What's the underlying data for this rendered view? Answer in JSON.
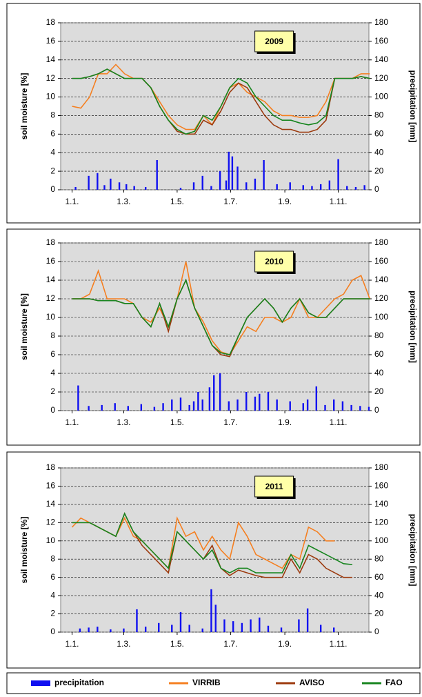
{
  "chart_data": [
    {
      "type": "line",
      "annotation": "2009",
      "ylabel": "soil moisture [%]",
      "y2label": "precipitation [mm]",
      "x": [
        1,
        11,
        21,
        31,
        41,
        51,
        61,
        71,
        81,
        91,
        101,
        111,
        121,
        131,
        141,
        151,
        161,
        171,
        181,
        191,
        201,
        211,
        221,
        231,
        241,
        251,
        261,
        271,
        281,
        291,
        301,
        311,
        321,
        331,
        341
      ],
      "xlim": [
        -12,
        340
      ],
      "xticks": [
        {
          "value": 1,
          "label": "1.1."
        },
        {
          "value": 60,
          "label": "1.3."
        },
        {
          "value": 121,
          "label": "1.5."
        },
        {
          "value": 182,
          "label": "1.7."
        },
        {
          "value": 244,
          "label": "1.9."
        },
        {
          "value": 305,
          "label": "1.11."
        }
      ],
      "ylim": [
        0,
        18
      ],
      "yticks": [
        0,
        2,
        4,
        6,
        8,
        10,
        12,
        14,
        16,
        18
      ],
      "y2lim": [
        0,
        180
      ],
      "y2ticks": [
        0,
        20,
        40,
        60,
        80,
        100,
        120,
        140,
        160,
        180
      ],
      "grid": true,
      "series": [
        {
          "name": "precipitation",
          "color": "#1010f0",
          "axis": "y2",
          "type": "bar",
          "x": [
            5,
            20,
            30,
            38,
            45,
            55,
            63,
            72,
            85,
            98,
            125,
            140,
            150,
            160,
            170,
            177,
            180,
            184,
            190,
            200,
            210,
            220,
            235,
            250,
            265,
            275,
            285,
            295,
            305,
            315,
            325,
            335
          ],
          "values": [
            3,
            15,
            18,
            5,
            12,
            8,
            6,
            4,
            3,
            32,
            2,
            8,
            15,
            4,
            20,
            10,
            41,
            36,
            25,
            8,
            12,
            32,
            6,
            8,
            5,
            4,
            6,
            10,
            33,
            4,
            3,
            5
          ]
        },
        {
          "name": "VIRRIB",
          "color": "#f57f20",
          "values": [
            9,
            8.8,
            10,
            12.5,
            12.5,
            13.5,
            12.5,
            12,
            12,
            11,
            9.5,
            8,
            7,
            6.5,
            6.5,
            8,
            7,
            9,
            11,
            11.5,
            10.5,
            10,
            9.5,
            8.5,
            8,
            8,
            7.8,
            7.8,
            8,
            9.5,
            12,
            12,
            12,
            12.5,
            12.5
          ]
        },
        {
          "name": "AVISO",
          "color": "#9c3a0e",
          "values": [
            12,
            12,
            12.2,
            12.5,
            13,
            12.5,
            12,
            12,
            12,
            11,
            9,
            7.5,
            6.3,
            6,
            6,
            7.5,
            7,
            8.5,
            10.5,
            11.5,
            11,
            9.5,
            8,
            7,
            6.5,
            6.5,
            6.2,
            6.2,
            6.5,
            7.5,
            12,
            12,
            12,
            12.2,
            12
          ]
        },
        {
          "name": "FAO",
          "color": "#17851f",
          "values": [
            12,
            12,
            12.2,
            12.5,
            13,
            12.5,
            12,
            12,
            12,
            11,
            9,
            7.5,
            6.5,
            6,
            6.3,
            8,
            7.5,
            9,
            11,
            12,
            11.5,
            10,
            9,
            8,
            7.5,
            7.5,
            7.2,
            7,
            7.2,
            8,
            12,
            12,
            12,
            12.2,
            12
          ]
        }
      ]
    },
    {
      "type": "line",
      "annotation": "2010",
      "ylabel": "soil moisture [%]",
      "y2label": "precipitation [mm]",
      "x": [
        1,
        11,
        21,
        31,
        41,
        51,
        61,
        71,
        81,
        91,
        101,
        111,
        121,
        131,
        141,
        151,
        161,
        171,
        181,
        191,
        201,
        211,
        221,
        231,
        241,
        251,
        261,
        271,
        281,
        291,
        301,
        311,
        321,
        331,
        341
      ],
      "xlim": [
        -12,
        340
      ],
      "xticks": [
        {
          "value": 1,
          "label": "1.1."
        },
        {
          "value": 60,
          "label": "1.3."
        },
        {
          "value": 121,
          "label": "1.5."
        },
        {
          "value": 182,
          "label": "1.7."
        },
        {
          "value": 244,
          "label": "1.9."
        },
        {
          "value": 305,
          "label": "1.11."
        }
      ],
      "ylim": [
        0,
        18
      ],
      "yticks": [
        0,
        2,
        4,
        6,
        8,
        10,
        12,
        14,
        16,
        18
      ],
      "y2lim": [
        0,
        180
      ],
      "y2ticks": [
        0,
        20,
        40,
        60,
        80,
        100,
        120,
        140,
        160,
        180
      ],
      "grid": true,
      "series": [
        {
          "color": "#1010f0",
          "axis": "y2",
          "type": "bar",
          "x": [
            8,
            20,
            35,
            50,
            65,
            80,
            95,
            105,
            115,
            125,
            135,
            140,
            145,
            150,
            158,
            163,
            170,
            180,
            190,
            200,
            210,
            215,
            225,
            235,
            250,
            265,
            270,
            280,
            290,
            300,
            310,
            320,
            330,
            340
          ],
          "values": [
            27,
            5,
            6,
            8,
            5,
            7,
            4,
            8,
            12,
            14,
            6,
            10,
            20,
            12,
            25,
            38,
            40,
            10,
            12,
            20,
            15,
            18,
            20,
            12,
            10,
            8,
            12,
            26,
            6,
            12,
            10,
            6,
            5,
            4
          ]
        },
        {
          "color": "#f57f20",
          "values": [
            12,
            12,
            12.5,
            15,
            12,
            12,
            12,
            11.5,
            10,
            9.5,
            11,
            9,
            12,
            16,
            11,
            9.5,
            7.5,
            6.3,
            6,
            7.5,
            9,
            8.5,
            10,
            10,
            9.5,
            10,
            12,
            10,
            10,
            11,
            12,
            12.5,
            14,
            14.5,
            12
          ]
        },
        {
          "color": "#9c3a0e",
          "values": [
            12,
            12,
            12,
            11.8,
            11.8,
            11.8,
            11.5,
            11.5,
            10,
            9,
            11.5,
            8.5,
            12,
            14,
            11,
            9,
            7,
            6,
            5.8,
            8,
            10,
            11,
            12,
            11,
            9.5,
            11,
            12,
            10.5,
            10,
            10,
            11,
            12,
            12,
            12,
            12
          ]
        },
        {
          "color": "#17851f",
          "values": [
            12,
            12,
            12,
            11.8,
            11.8,
            11.8,
            11.5,
            11.5,
            10,
            9,
            11.5,
            9,
            12,
            14,
            11,
            9,
            7,
            6.2,
            6,
            8,
            10,
            11,
            12,
            11,
            9.5,
            11,
            12,
            10.5,
            10,
            10,
            11,
            12,
            12,
            12,
            12
          ]
        }
      ]
    },
    {
      "type": "line",
      "annotation": "2011",
      "ylabel": "soil moisture [%]",
      "y2label": "precipitation [mm]",
      "x": [
        1,
        11,
        21,
        31,
        41,
        51,
        61,
        71,
        81,
        91,
        101,
        111,
        121,
        131,
        141,
        151,
        161,
        171,
        181,
        191,
        201,
        211,
        221,
        231,
        241,
        251,
        261,
        271,
        281,
        291,
        301,
        311,
        321,
        331,
        341
      ],
      "xlim": [
        -12,
        340
      ],
      "xticks": [
        {
          "value": 1,
          "label": "1.1."
        },
        {
          "value": 60,
          "label": "1.3."
        },
        {
          "value": 121,
          "label": "1.5."
        },
        {
          "value": 182,
          "label": "1.7."
        },
        {
          "value": 244,
          "label": "1.9."
        },
        {
          "value": 305,
          "label": "1.11."
        }
      ],
      "ylim": [
        0,
        18
      ],
      "yticks": [
        0,
        2,
        4,
        6,
        8,
        10,
        12,
        14,
        16,
        18
      ],
      "y2lim": [
        0,
        180
      ],
      "y2ticks": [
        0,
        20,
        40,
        60,
        80,
        100,
        120,
        140,
        160,
        180
      ],
      "grid": true,
      "series": [
        {
          "color": "#1010f0",
          "axis": "y2",
          "type": "bar",
          "x": [
            10,
            20,
            30,
            45,
            60,
            75,
            85,
            100,
            115,
            125,
            135,
            150,
            160,
            165,
            175,
            185,
            195,
            205,
            215,
            225,
            240,
            260,
            270,
            285,
            300
          ],
          "values": [
            4,
            5,
            6,
            3,
            4,
            25,
            6,
            10,
            8,
            22,
            8,
            4,
            47,
            30,
            14,
            12,
            10,
            14,
            16,
            7,
            5,
            14,
            26,
            8,
            5
          ]
        },
        {
          "color": "#f57f20",
          "values": [
            11.5,
            12.5,
            12,
            11.5,
            11,
            10.5,
            12.5,
            10.5,
            10,
            9,
            8,
            7,
            12.5,
            10.5,
            11,
            9,
            10.5,
            9,
            8,
            12,
            10.5,
            8.5,
            8,
            7.5,
            7,
            8.5,
            8,
            11.5,
            11,
            10,
            10,
            null,
            null,
            null,
            null
          ]
        },
        {
          "color": "#9c3a0e",
          "values": [
            12,
            12,
            12,
            11.5,
            11,
            10.5,
            13,
            11,
            9.5,
            8.5,
            7.5,
            6.5,
            11,
            10,
            9,
            8,
            9.5,
            7,
            6.2,
            6.8,
            6.5,
            6.2,
            6,
            6,
            6,
            8,
            6.5,
            8.5,
            8,
            7,
            6.5,
            6,
            6,
            null,
            null
          ]
        },
        {
          "color": "#17851f",
          "values": [
            12,
            12,
            12,
            11.5,
            11,
            10.5,
            13,
            11,
            10,
            9,
            8,
            7,
            11,
            10,
            9,
            8,
            9,
            7,
            6.5,
            7,
            7,
            6.5,
            6.5,
            6.5,
            6.5,
            8.5,
            7,
            9.5,
            9,
            8.5,
            8,
            7.5,
            7.4,
            null,
            null
          ]
        }
      ]
    }
  ]
}
